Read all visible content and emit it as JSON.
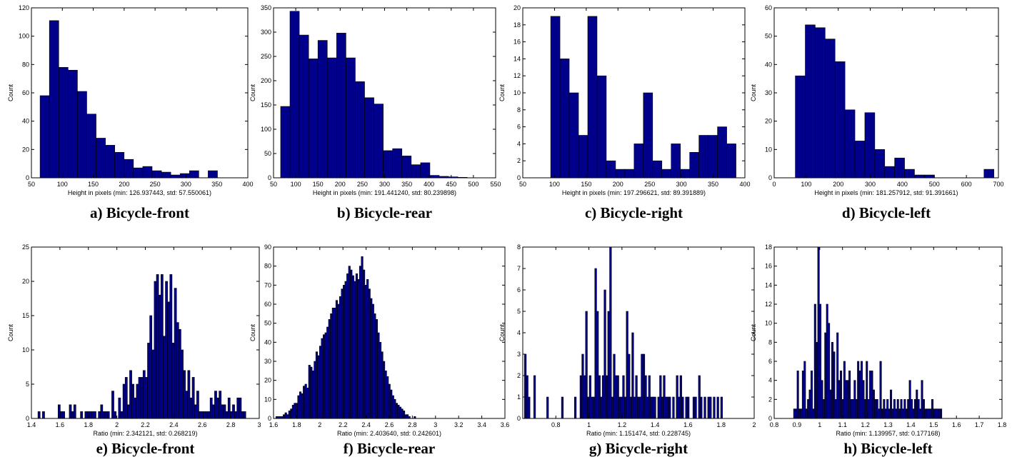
{
  "chart_data": [
    {
      "type": "bar",
      "id": "a",
      "caption": "a) Bicycle-front",
      "xlabel": "Height in pixels (min: 126.937443, std: 57.550061)",
      "ylabel": "Count",
      "xlim": [
        50,
        400
      ],
      "ylim": [
        0,
        120
      ],
      "xticks": [
        50,
        100,
        150,
        200,
        250,
        300,
        350,
        400
      ],
      "xticklabels": [
        "50",
        "100",
        "150",
        "200",
        "250",
        "300",
        "350",
        "400"
      ],
      "yticks": [
        0,
        20,
        40,
        60,
        80,
        100,
        120
      ],
      "bin_start": 64,
      "bin_width": 15.1,
      "values": [
        58,
        111,
        78,
        76,
        61,
        45,
        28,
        23,
        18,
        13,
        7,
        8,
        5,
        4,
        2,
        3,
        5,
        0,
        5
      ]
    },
    {
      "type": "bar",
      "id": "b",
      "caption": "b) Bicycle-rear",
      "xlabel": "Height in pixels (min: 191.441240, std: 80.239898)",
      "ylabel": "Count",
      "xlim": [
        50,
        550
      ],
      "ylim": [
        0,
        350
      ],
      "xticks": [
        50,
        100,
        150,
        200,
        250,
        300,
        350,
        400,
        450,
        500,
        550
      ],
      "xticklabels": [
        "50",
        "100",
        "150",
        "200",
        "250",
        "300",
        "350",
        "400",
        "450",
        "500",
        "550"
      ],
      "yticks": [
        0,
        50,
        100,
        150,
        200,
        250,
        300,
        350
      ],
      "bin_start": 66,
      "bin_width": 21,
      "values": [
        147,
        343,
        294,
        245,
        283,
        247,
        298,
        247,
        198,
        165,
        152,
        56,
        60,
        45,
        27,
        31,
        5,
        3,
        2,
        1
      ]
    },
    {
      "type": "bar",
      "id": "c",
      "caption": "c) Bicycle-right",
      "xlabel": "Height in pixels (min: 197.296621, std: 89.391889)",
      "ylabel": "Count",
      "xlim": [
        50,
        400
      ],
      "ylim": [
        0,
        20
      ],
      "xticks": [
        50,
        100,
        150,
        200,
        250,
        300,
        350,
        400
      ],
      "xticklabels": [
        "50",
        "100",
        "150",
        "200",
        "250",
        "300",
        "350",
        "400"
      ],
      "yticks": [
        0,
        2,
        4,
        6,
        8,
        10,
        12,
        14,
        16,
        18,
        20
      ],
      "bin_start": 94,
      "bin_width": 14.6,
      "values": [
        19,
        14,
        10,
        5,
        19,
        12,
        2,
        1,
        1,
        4,
        10,
        2,
        1,
        4,
        1,
        3,
        5,
        5,
        6,
        4
      ]
    },
    {
      "type": "bar",
      "id": "d",
      "caption": "d) Bicycle-left",
      "xlabel": "Height in pixels (min: 181.257912, std: 91.391661)",
      "ylabel": "Count",
      "xlim": [
        0,
        700
      ],
      "ylim": [
        0,
        60
      ],
      "xticks": [
        0,
        100,
        200,
        300,
        400,
        500,
        600,
        700
      ],
      "xticklabels": [
        "0",
        "100",
        "200",
        "300",
        "400",
        "500",
        "600",
        "700"
      ],
      "yticks": [
        0,
        10,
        20,
        30,
        40,
        50,
        60
      ],
      "bin_start": 66,
      "bin_width": 31,
      "values": [
        36,
        54,
        53,
        49,
        41,
        24,
        13,
        23,
        10,
        4,
        7,
        3,
        1,
        1,
        0,
        0,
        0,
        0,
        0,
        3
      ]
    },
    {
      "type": "bar",
      "id": "e",
      "caption": "e) Bicycle-front",
      "xlabel": "Ratio (min: 2.342121, std: 0.268219)",
      "ylabel": "Count",
      "xlim": [
        1.4,
        3.0
      ],
      "ylim": [
        0,
        25
      ],
      "xticks": [
        1.4,
        1.6,
        1.8,
        2.0,
        2.2,
        2.4,
        2.6,
        2.8,
        3.0
      ],
      "xticklabels": [
        "1.4",
        "1.6",
        "1.8",
        "2",
        "2.2",
        "2.4",
        "2.6",
        "2.8",
        "3"
      ],
      "yticks": [
        0,
        5,
        10,
        15,
        20,
        25
      ],
      "bin_start": 1.43,
      "bin_width": 0.0157,
      "values": [
        0,
        1,
        0,
        1,
        0,
        0,
        0,
        0,
        0,
        0,
        2,
        1,
        1,
        0,
        0,
        2,
        1,
        2,
        0,
        0,
        1,
        0,
        1,
        1,
        1,
        1,
        1,
        0,
        1,
        2,
        1,
        1,
        1,
        0,
        4,
        1,
        0,
        3,
        1,
        5,
        6,
        2,
        7,
        5,
        3,
        5,
        6,
        6,
        7,
        6,
        11,
        15,
        10,
        20,
        21,
        18,
        21,
        12,
        20,
        17,
        21,
        11,
        19,
        14,
        13,
        10,
        7,
        4,
        7,
        3,
        6,
        2,
        4,
        1,
        1,
        1,
        1,
        1,
        3,
        2,
        4,
        3,
        4,
        2,
        2,
        1,
        3,
        1,
        2,
        1,
        3,
        3,
        1,
        1
      ]
    },
    {
      "type": "bar",
      "id": "f",
      "caption": "f) Bicycle-rear",
      "xlabel": "Ratio (min: 2.403640, std: 0.242601)",
      "ylabel": "Count",
      "xlim": [
        1.6,
        3.6
      ],
      "ylim": [
        0,
        90
      ],
      "xticks": [
        1.6,
        1.8,
        2.0,
        2.2,
        2.4,
        2.6,
        2.8,
        3.0,
        3.2,
        3.4,
        3.6
      ],
      "xticklabels": [
        "1.6",
        "1.8",
        "2",
        "2.2",
        "2.4",
        "2.6",
        "2.8",
        "3",
        "3.2",
        "3.4",
        "3.6"
      ],
      "yticks": [
        0,
        10,
        20,
        30,
        40,
        50,
        60,
        70,
        80,
        90
      ],
      "bin_start": 1.62,
      "bin_width": 0.0157,
      "values": [
        1,
        1,
        1,
        1,
        2,
        3,
        2,
        4,
        5,
        7,
        8,
        8,
        12,
        14,
        13,
        17,
        18,
        16,
        28,
        27,
        25,
        30,
        35,
        33,
        38,
        42,
        44,
        45,
        48,
        52,
        55,
        58,
        58,
        62,
        60,
        64,
        68,
        70,
        72,
        76,
        80,
        78,
        75,
        72,
        76,
        73,
        80,
        85,
        78,
        70,
        73,
        68,
        63,
        60,
        55,
        52,
        45,
        40,
        35,
        30,
        25,
        22,
        18,
        15,
        12,
        10,
        8,
        7,
        6,
        5,
        4,
        2,
        2,
        1,
        0,
        0,
        1
      ]
    },
    {
      "type": "bar",
      "id": "g",
      "caption": "g) Bicycle-right",
      "xlabel": "Ratio (min: 1.151474, std: 0.228745)",
      "ylabel": "Count",
      "xlim": [
        0.6,
        2.0
      ],
      "ylim": [
        0,
        8
      ],
      "xticks": [
        0.8,
        1.0,
        1.2,
        1.4,
        1.6,
        1.8,
        2.0
      ],
      "xticklabels": [
        "0.8",
        "1",
        "1.2",
        "1.4",
        "1.6",
        "1.8",
        "2"
      ],
      "yticks": [
        0,
        1,
        2,
        3,
        4,
        5,
        6,
        7,
        8
      ],
      "bin_start": 0.61,
      "bin_width": 0.0112,
      "values": [
        3,
        2,
        1,
        0,
        0,
        2,
        0,
        0,
        0,
        0,
        0,
        0,
        1,
        0,
        0,
        0,
        0,
        0,
        0,
        0,
        1,
        0,
        0,
        0,
        0,
        0,
        0,
        1,
        0,
        0,
        2,
        3,
        2,
        5,
        1,
        2,
        1,
        1,
        7,
        5,
        2,
        1,
        2,
        6,
        2,
        5,
        8,
        1,
        3,
        2,
        2,
        1,
        1,
        2,
        1,
        5,
        3,
        1,
        4,
        1,
        2,
        1,
        1,
        3,
        3,
        2,
        1,
        2,
        1,
        1,
        1,
        0,
        1,
        2,
        1,
        2,
        1,
        1,
        1,
        0,
        1,
        0,
        2,
        1,
        2,
        1,
        0,
        1,
        1,
        0,
        0,
        1,
        1,
        0,
        2,
        1,
        0,
        1,
        0,
        1,
        1,
        0,
        1,
        0,
        1,
        0,
        1
      ]
    },
    {
      "type": "bar",
      "id": "h",
      "caption": "h) Bicycle-left",
      "xlabel": "Ratio (min: 1.139957, std: 0.177168)",
      "ylabel": "Count",
      "xlim": [
        0.8,
        1.8
      ],
      "ylim": [
        0,
        18
      ],
      "xticks": [
        0.8,
        0.9,
        1.0,
        1.1,
        1.2,
        1.3,
        1.4,
        1.5,
        1.6,
        1.7,
        1.8
      ],
      "xticklabels": [
        "0.8",
        "0.9",
        "1",
        "1.1",
        "1.2",
        "1.3",
        "1.4",
        "1.5",
        "1.6",
        "1.7",
        "1.8"
      ],
      "yticks": [
        0,
        2,
        4,
        6,
        8,
        10,
        12,
        14,
        16,
        18
      ],
      "bin_start": 0.885,
      "bin_width": 0.00757,
      "values": [
        1,
        1,
        5,
        1,
        1,
        5,
        6,
        1,
        2,
        3,
        5,
        1,
        12,
        8,
        18,
        12,
        4,
        2,
        9,
        12,
        10,
        3,
        8,
        7,
        2,
        9,
        4,
        5,
        2,
        6,
        4,
        4,
        5,
        2,
        2,
        4,
        2,
        6,
        5,
        6,
        4,
        2,
        6,
        2,
        5,
        5,
        3,
        2,
        2,
        1,
        6,
        1,
        2,
        1,
        2,
        1,
        3,
        1,
        2,
        1,
        2,
        1,
        2,
        1,
        2,
        1,
        2,
        4,
        2,
        1,
        2,
        3,
        2,
        1,
        4,
        2,
        1,
        1,
        1,
        1,
        2,
        1,
        1,
        1,
        1,
        1
      ]
    }
  ]
}
